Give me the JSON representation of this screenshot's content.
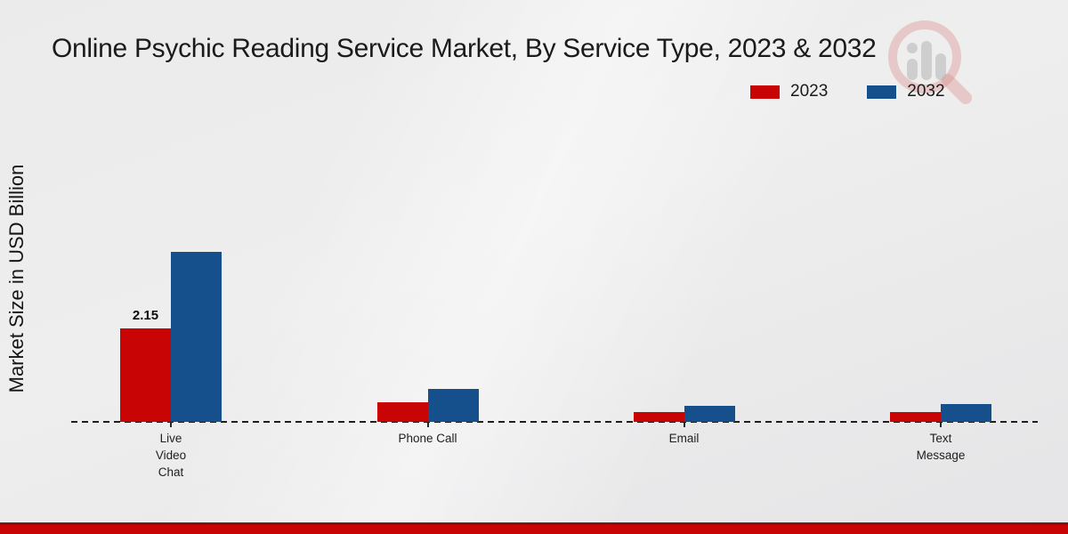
{
  "title": "Online Psychic Reading Service Market, By Service Type, 2023 & 2032",
  "ylabel": "Market Size in USD Billion",
  "legend": {
    "items": [
      {
        "label": "2023",
        "color": "#c80404"
      },
      {
        "label": "2032",
        "color": "#15508d"
      }
    ]
  },
  "watermark": {
    "name": "market-research-magnifier-logo",
    "ring_color": "#d98c8c",
    "bars_color": "#b5b5b5"
  },
  "chart_data": {
    "type": "bar",
    "title": "Online Psychic Reading Service Market, By Service Type, 2023 & 2032",
    "xlabel": "",
    "ylabel": "Market Size in USD Billion",
    "categories": [
      "Live Video Chat",
      "Phone Call",
      "Email",
      "Text Message"
    ],
    "category_label_lines": [
      [
        "Live",
        "Video",
        "Chat"
      ],
      [
        "Phone Call"
      ],
      [
        "Email"
      ],
      [
        "Text",
        "Message"
      ]
    ],
    "series": [
      {
        "name": "2023",
        "color": "#c80404",
        "values": [
          2.15,
          0.45,
          0.23,
          0.23
        ]
      },
      {
        "name": "2032",
        "color": "#15508d",
        "values": [
          3.92,
          0.75,
          0.36,
          0.41
        ]
      }
    ],
    "annotations": [
      {
        "series": "2023",
        "category": "Live Video Chat",
        "text": "2.15"
      }
    ],
    "ylim": [
      0,
      6.6
    ],
    "grid": false,
    "legend_position": "top-right",
    "baseline": "dashed"
  }
}
